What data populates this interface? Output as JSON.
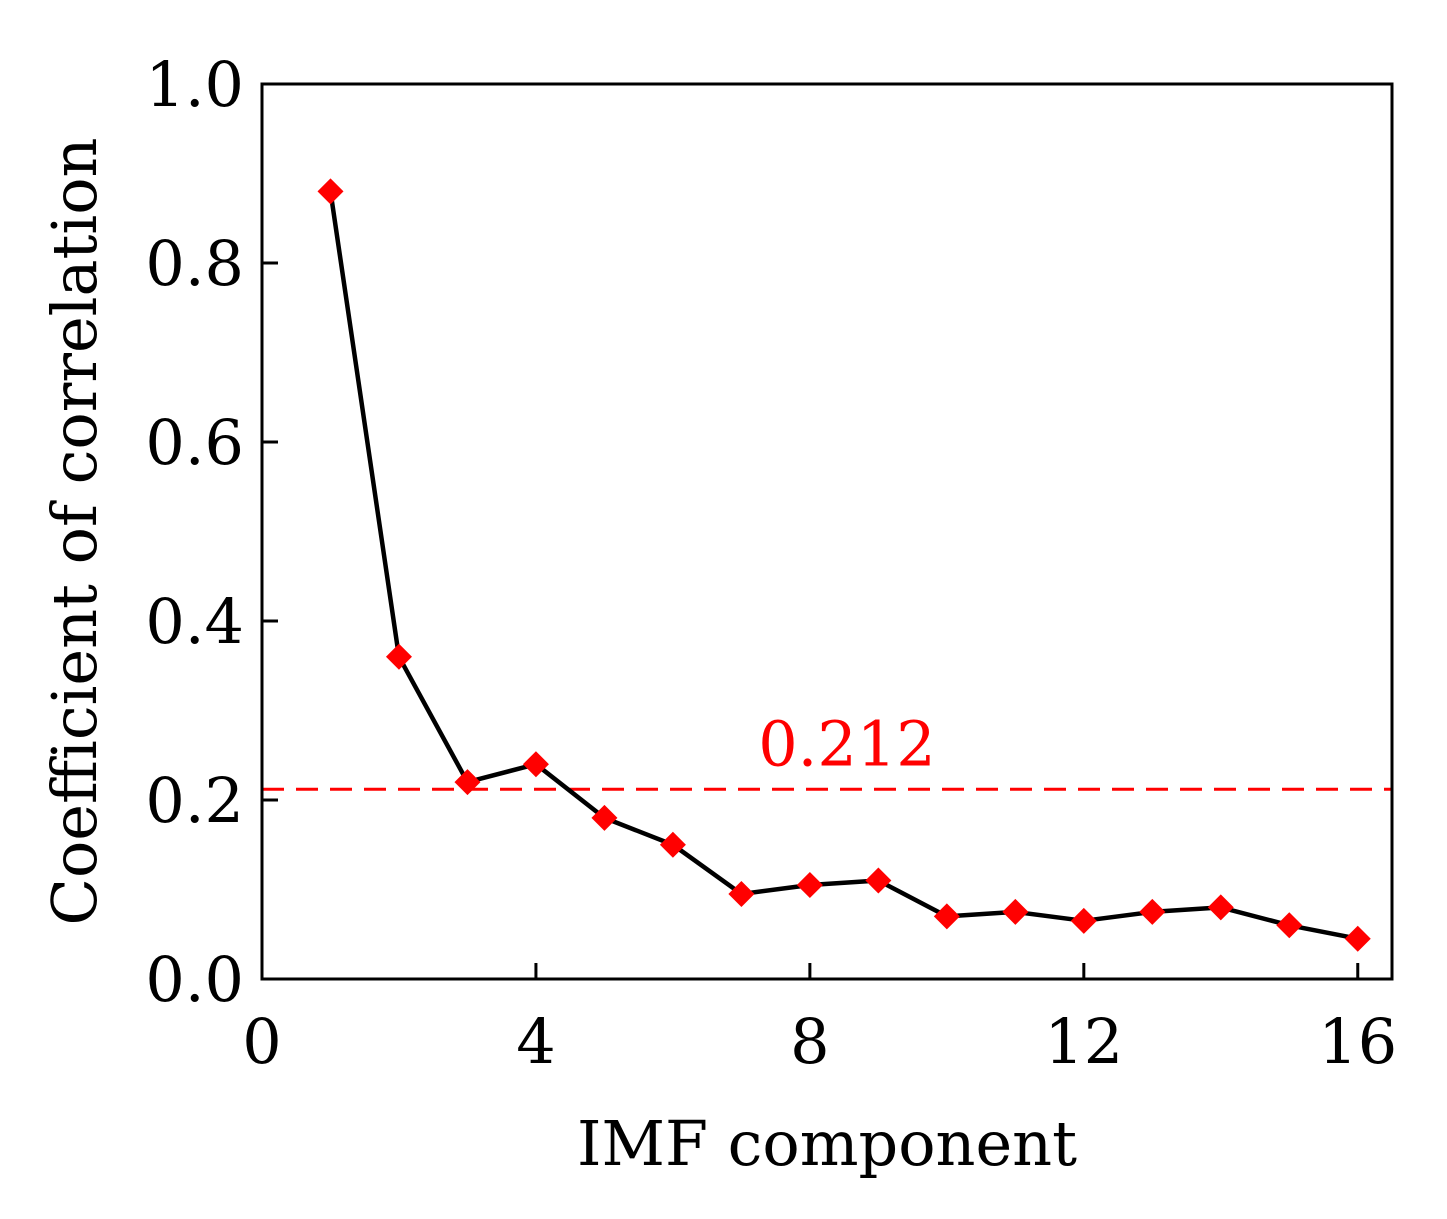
{
  "chart_data": {
    "type": "line",
    "xlabel": "IMF component",
    "ylabel": "Coefficient of correlation",
    "xlim": [
      0,
      16.5
    ],
    "ylim": [
      0,
      1.0
    ],
    "x_ticks": [
      0,
      4,
      8,
      12,
      16
    ],
    "x_tick_labels": [
      "0",
      "4",
      "8",
      "12",
      "16"
    ],
    "y_ticks": [
      0.0,
      0.2,
      0.4,
      0.6,
      0.8,
      1.0
    ],
    "y_tick_labels": [
      "0.0",
      "0.2",
      "0.4",
      "0.6",
      "0.8",
      "1.0"
    ],
    "grid": false,
    "series": [
      {
        "x": [
          1,
          2,
          3,
          4,
          5,
          6,
          7,
          8,
          9,
          10,
          11,
          12,
          13,
          14,
          15,
          16
        ],
        "values": [
          0.88,
          0.36,
          0.22,
          0.24,
          0.18,
          0.15,
          0.095,
          0.105,
          0.11,
          0.07,
          0.075,
          0.065,
          0.075,
          0.08,
          0.06,
          0.045
        ],
        "line_color": "#000000",
        "marker_color": "#ff0000",
        "marker": "diamond"
      }
    ],
    "threshold": {
      "value": 0.212,
      "label": "0.212",
      "color": "#ff0000",
      "style": "dashed"
    }
  }
}
